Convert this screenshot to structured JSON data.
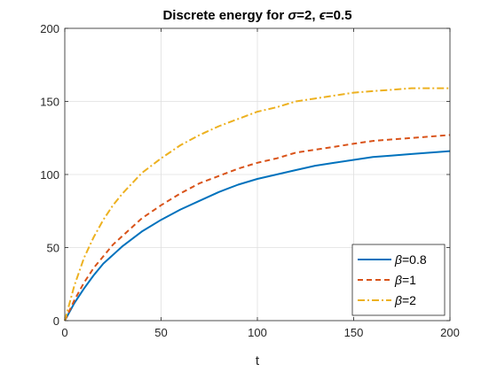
{
  "chart_data": {
    "type": "line",
    "title_prefix": "Discrete energy for ",
    "title_sym1": "σ",
    "title_mid": "=2, ",
    "title_sym2": "ϵ",
    "title_suffix": "=0.5",
    "xlabel": "t",
    "ylabel": "",
    "xlim": [
      0,
      200
    ],
    "ylim": [
      0,
      200
    ],
    "xticks": [
      0,
      50,
      100,
      150,
      200
    ],
    "yticks": [
      0,
      50,
      100,
      150,
      200
    ],
    "grid": true,
    "legend_position": "bottom-right",
    "x": [
      0,
      5,
      10,
      15,
      20,
      25,
      30,
      40,
      50,
      60,
      70,
      80,
      90,
      100,
      110,
      120,
      130,
      140,
      150,
      160,
      170,
      180,
      190,
      200
    ],
    "series": [
      {
        "name_sym": "β",
        "name_rest": "=0.8",
        "style": "solid",
        "color": "#0072BD",
        "values": [
          0,
          12,
          22,
          31,
          39,
          45,
          51,
          61,
          69,
          76,
          82,
          88,
          93,
          97,
          100,
          103,
          106,
          108,
          110,
          112,
          113,
          114,
          115,
          116
        ]
      },
      {
        "name_sym": "β",
        "name_rest": "=1",
        "style": "dashed",
        "color": "#D95319",
        "values": [
          0,
          14,
          26,
          36,
          44,
          52,
          58,
          70,
          79,
          87,
          94,
          99,
          104,
          108,
          111,
          115,
          117,
          119,
          121,
          123,
          124,
          125,
          126,
          127
        ]
      },
      {
        "name_sym": "β",
        "name_rest": "=2",
        "style": "dashdot",
        "color": "#EDB120",
        "values": [
          0,
          24,
          43,
          57,
          69,
          79,
          87,
          101,
          111,
          120,
          127,
          133,
          138,
          143,
          146,
          150,
          152,
          154,
          156,
          157,
          158,
          159,
          159,
          159
        ]
      }
    ]
  }
}
